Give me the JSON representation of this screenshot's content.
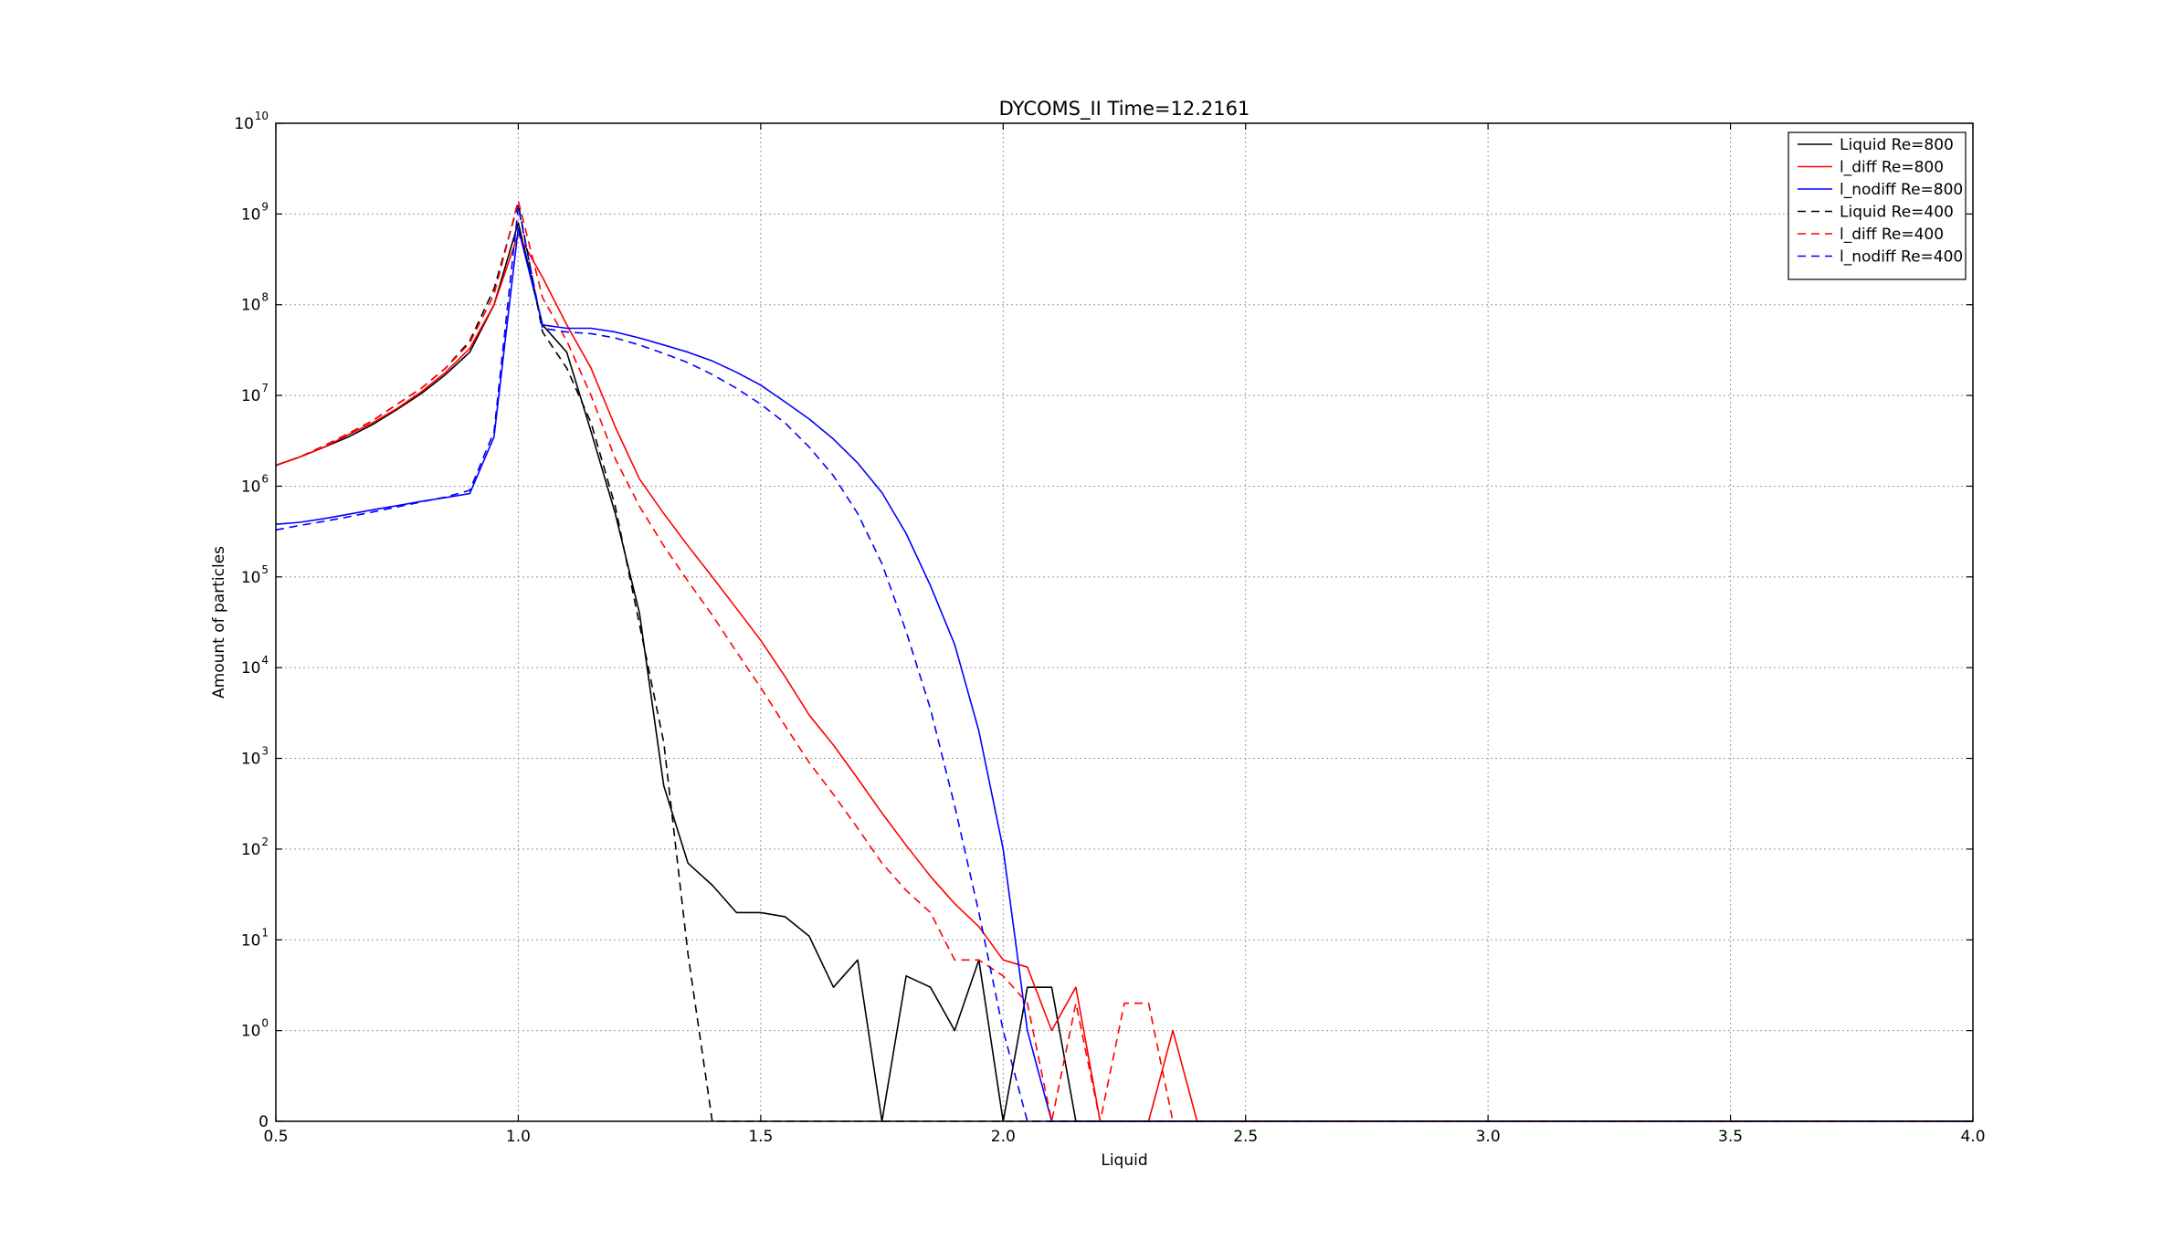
{
  "chart_data": {
    "type": "line",
    "title": "DYCOMS_II Time=12.2161",
    "xlabel": "Liquid",
    "ylabel": "Amount of particles",
    "xlim": [
      0.5,
      4.0
    ],
    "ylim": [
      0,
      10000000000
    ],
    "yscale": "symlog",
    "grid": true,
    "legend_position": "top-right",
    "x_ticks": [
      "0.5",
      "1.0",
      "1.5",
      "2.0",
      "2.5",
      "3.0",
      "3.5",
      "4.0"
    ],
    "y_ticks": [
      {
        "base": "0",
        "exp": ""
      },
      {
        "base": "10",
        "exp": "0"
      },
      {
        "base": "10",
        "exp": "1"
      },
      {
        "base": "10",
        "exp": "2"
      },
      {
        "base": "10",
        "exp": "3"
      },
      {
        "base": "10",
        "exp": "4"
      },
      {
        "base": "10",
        "exp": "5"
      },
      {
        "base": "10",
        "exp": "6"
      },
      {
        "base": "10",
        "exp": "7"
      },
      {
        "base": "10",
        "exp": "8"
      },
      {
        "base": "10",
        "exp": "9"
      },
      {
        "base": "10",
        "exp": "10"
      }
    ],
    "series": [
      {
        "name": "Liquid Re=800",
        "color": "#000000",
        "dash": "solid",
        "x": [
          0.5,
          0.55,
          0.6,
          0.65,
          0.7,
          0.75,
          0.8,
          0.85,
          0.9,
          0.95,
          1.0,
          1.05,
          1.1,
          1.15,
          1.2,
          1.25,
          1.3,
          1.35,
          1.4,
          1.45,
          1.5,
          1.55,
          1.6,
          1.65,
          1.7,
          1.75,
          1.8,
          1.85,
          1.9,
          1.95,
          2.0,
          2.05,
          2.1,
          2.15,
          2.2,
          4.0
        ],
        "y": [
          1700000,
          2100000,
          2700000,
          3500000,
          4800000,
          7000000,
          10500000,
          17000000,
          30000000,
          100000000,
          800000000,
          60000000,
          30000000,
          4000000,
          500000,
          40000,
          500,
          70,
          40,
          20,
          20,
          18,
          11,
          3,
          6,
          0,
          4,
          3,
          1,
          6,
          0,
          3,
          3,
          0,
          0,
          0
        ]
      },
      {
        "name": "l_diff Re=800",
        "color": "#ff0000",
        "dash": "solid",
        "x": [
          0.5,
          0.55,
          0.6,
          0.65,
          0.7,
          0.75,
          0.8,
          0.85,
          0.9,
          0.95,
          1.0,
          1.05,
          1.1,
          1.15,
          1.2,
          1.25,
          1.3,
          1.35,
          1.4,
          1.45,
          1.5,
          1.55,
          1.6,
          1.65,
          1.7,
          1.75,
          1.8,
          1.85,
          1.9,
          1.95,
          2.0,
          2.05,
          2.1,
          2.15,
          2.2,
          2.25,
          2.3,
          2.35,
          2.4,
          4.0
        ],
        "y": [
          1700000,
          2100000,
          2700000,
          3700000,
          5000000,
          7200000,
          11000000,
          18000000,
          33000000,
          100000000,
          600000000,
          200000000,
          60000000,
          20000000,
          4500000,
          1200000,
          500000,
          220000,
          100000,
          45000,
          20000,
          8000,
          3000,
          1400,
          600,
          250,
          110,
          50,
          25,
          14,
          6,
          5,
          1,
          3,
          0,
          0,
          0,
          1,
          0,
          0
        ]
      },
      {
        "name": "l_nodiff Re=800",
        "color": "#0000ff",
        "dash": "solid",
        "x": [
          0.5,
          0.55,
          0.6,
          0.65,
          0.7,
          0.75,
          0.8,
          0.85,
          0.9,
          0.95,
          1.0,
          1.05,
          1.1,
          1.15,
          1.2,
          1.25,
          1.3,
          1.35,
          1.4,
          1.45,
          1.5,
          1.55,
          1.6,
          1.65,
          1.7,
          1.75,
          1.8,
          1.85,
          1.9,
          1.95,
          2.0,
          2.05,
          2.1,
          4.0
        ],
        "y": [
          380000,
          400000,
          440000,
          490000,
          550000,
          610000,
          680000,
          750000,
          830000,
          3500000,
          700000000,
          60000000,
          55000000,
          55000000,
          50000000,
          43000000,
          36000000,
          30000000,
          24000000,
          18000000,
          13000000,
          8500000,
          5500000,
          3300000,
          1800000,
          850000,
          300000,
          80000,
          18000,
          2000,
          100,
          1,
          0,
          0
        ]
      },
      {
        "name": "Liquid Re=400",
        "color": "#000000",
        "dash": "dashed",
        "x": [
          0.5,
          0.55,
          0.6,
          0.65,
          0.7,
          0.75,
          0.8,
          0.85,
          0.9,
          0.95,
          1.0,
          1.05,
          1.1,
          1.15,
          1.2,
          1.25,
          1.3,
          1.35,
          1.4,
          4.0
        ],
        "y": [
          1700000,
          2100000,
          2800000,
          3800000,
          5300000,
          8000000,
          12000000,
          20000000,
          40000000,
          150000000,
          1300000000,
          50000000,
          20000000,
          5000000,
          600000,
          30000,
          1500,
          7,
          0,
          0
        ]
      },
      {
        "name": "l_diff Re=400",
        "color": "#ff0000",
        "dash": "dashed",
        "x": [
          0.5,
          0.55,
          0.6,
          0.65,
          0.7,
          0.75,
          0.8,
          0.85,
          0.9,
          0.95,
          1.0,
          1.05,
          1.1,
          1.15,
          1.2,
          1.25,
          1.3,
          1.35,
          1.4,
          1.45,
          1.5,
          1.55,
          1.6,
          1.65,
          1.7,
          1.75,
          1.8,
          1.85,
          1.9,
          1.95,
          2.0,
          2.05,
          2.1,
          2.15,
          2.2,
          2.25,
          2.3,
          2.35,
          4.0
        ],
        "y": [
          1700000,
          2100000,
          2800000,
          3800000,
          5300000,
          8000000,
          12000000,
          20000000,
          38000000,
          130000000,
          1400000000,
          120000000,
          40000000,
          10000000,
          2000000,
          600000,
          220000,
          90000,
          38000,
          15000,
          6000,
          2300,
          900,
          400,
          170,
          70,
          35,
          20,
          6,
          6,
          4,
          2,
          0,
          2,
          0,
          2,
          2,
          0,
          0
        ]
      },
      {
        "name": "l_nodiff Re=400",
        "color": "#0000ff",
        "dash": "dashed",
        "x": [
          0.5,
          0.55,
          0.6,
          0.65,
          0.7,
          0.75,
          0.8,
          0.85,
          0.9,
          0.95,
          1.0,
          1.05,
          1.1,
          1.15,
          1.2,
          1.25,
          1.3,
          1.35,
          1.4,
          1.45,
          1.5,
          1.55,
          1.6,
          1.65,
          1.7,
          1.75,
          1.8,
          1.85,
          1.9,
          1.95,
          2.0,
          2.05,
          4.0
        ],
        "y": [
          330000,
          370000,
          410000,
          460000,
          520000,
          590000,
          670000,
          760000,
          900000,
          4000000,
          1200000000,
          55000000,
          50000000,
          48000000,
          43000000,
          36000000,
          29000000,
          23000000,
          17000000,
          12000000,
          8000000,
          5000000,
          2700000,
          1300000,
          500000,
          140000,
          25000,
          3500,
          300,
          20,
          1,
          0,
          0
        ]
      }
    ]
  }
}
